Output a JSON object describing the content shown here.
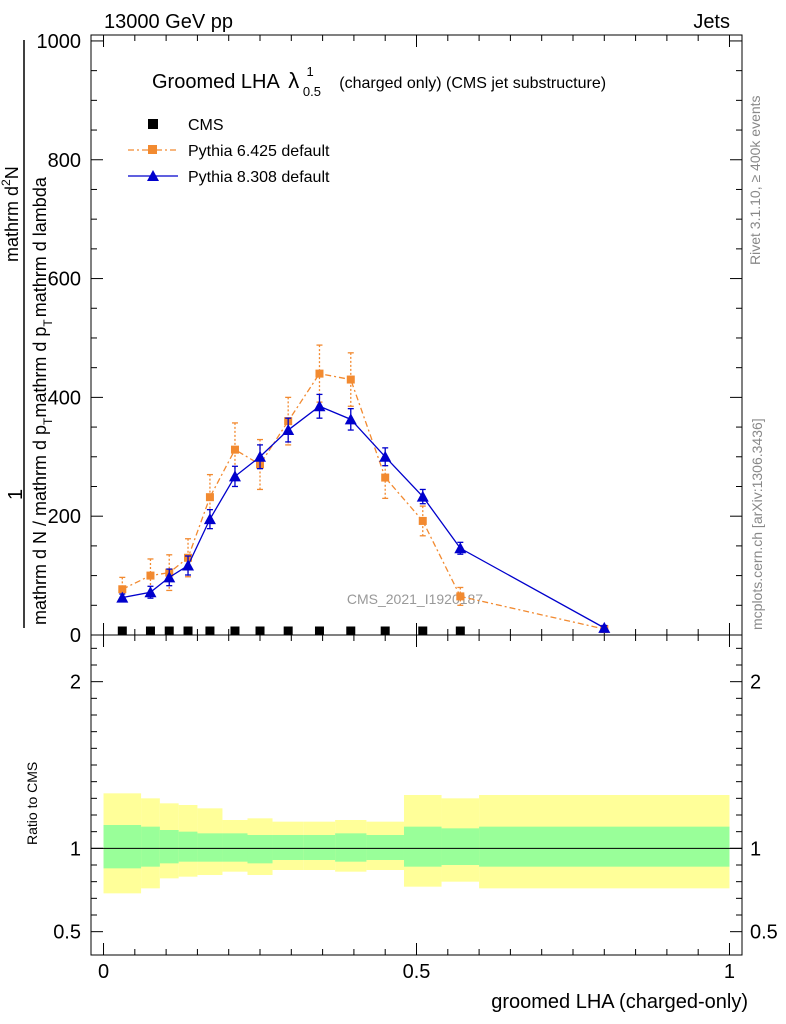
{
  "header": {
    "energy": "13000 GeV pp",
    "process": "Jets"
  },
  "side_labels": {
    "rivet": "Rivet 3.1.10, ≥ 400k events",
    "mcplots": "mcplots.cern.ch [arXiv:1306.3436]"
  },
  "chart_data": {
    "type": "line",
    "title_main": "Groomed LHA",
    "title_symbol": "λ",
    "title_sup": "1",
    "title_sub": "0.5",
    "title_suffix": "(charged only) (CMS jet substructure)",
    "watermark": "CMS_2021_I1920187",
    "ylabel_parts": {
      "one": "1",
      "den1": "mathrm d N / mathrm d p",
      "den1_sub": "T",
      "den2": "mathrm d p",
      "den2_sub": "T",
      "den2_tail": "mathrm d lambda",
      "num": "mathrm d",
      "num_sup": "2",
      "num_tail": "N"
    },
    "xlabel": "groomed LHA (charged-only)",
    "xlim": [
      -0.02,
      1.02
    ],
    "ylim": [
      0,
      1010
    ],
    "xticks": [
      0,
      0.5,
      1
    ],
    "xtick_labels": [
      "0",
      "0.5",
      "1"
    ],
    "yticks": [
      0,
      200,
      400,
      600,
      800,
      1000
    ],
    "ytick_labels": [
      "0",
      "200",
      "400",
      "600",
      "800",
      "1000"
    ],
    "series": [
      {
        "name": "CMS",
        "color": "#000000",
        "marker": "square",
        "x": [
          0.03,
          0.075,
          0.105,
          0.135,
          0.17,
          0.21,
          0.25,
          0.295,
          0.345,
          0.395,
          0.45,
          0.51,
          0.57
        ],
        "y": [
          0,
          0,
          0,
          0,
          0,
          0,
          0,
          0,
          0,
          0,
          0,
          0,
          0
        ]
      },
      {
        "name": "Pythia 6.425 default",
        "color": "#f28a30",
        "marker": "square",
        "linestyle": "dashdot",
        "x": [
          0.03,
          0.075,
          0.105,
          0.135,
          0.17,
          0.21,
          0.25,
          0.295,
          0.345,
          0.395,
          0.45,
          0.51,
          0.57,
          0.8
        ],
        "y": [
          77,
          100,
          105,
          130,
          232,
          312,
          287,
          360,
          440,
          430,
          265,
          192,
          65,
          10
        ],
        "err": [
          20,
          28,
          30,
          32,
          38,
          45,
          42,
          40,
          48,
          45,
          35,
          25,
          15,
          5
        ]
      },
      {
        "name": "Pythia 8.308 default",
        "color": "#0000cc",
        "marker": "triangle",
        "linestyle": "solid",
        "x": [
          0.03,
          0.075,
          0.105,
          0.135,
          0.17,
          0.21,
          0.25,
          0.295,
          0.345,
          0.395,
          0.45,
          0.51,
          0.57,
          0.8
        ],
        "y": [
          63,
          72,
          97,
          117,
          195,
          267,
          300,
          345,
          385,
          363,
          300,
          233,
          146,
          12
        ],
        "err": [
          6,
          10,
          14,
          16,
          16,
          17,
          20,
          20,
          20,
          18,
          15,
          12,
          10,
          4
        ]
      }
    ],
    "ratio": {
      "ylabel": "Ratio to CMS",
      "ylim": [
        0.36,
        2.28
      ],
      "yticks": [
        0.5,
        1,
        2
      ],
      "ytick_labels": [
        "0.5",
        "1",
        "2"
      ],
      "reference_line": 1,
      "green_color": "#99ff99",
      "yellow_color": "#ffff99",
      "bins": [
        {
          "x0": 0.0,
          "x1": 0.06,
          "y1lo": 0.88,
          "y1hi": 1.14,
          "y2lo": 0.73,
          "y2hi": 1.33
        },
        {
          "x0": 0.06,
          "x1": 0.09,
          "y1lo": 0.89,
          "y1hi": 1.13,
          "y2lo": 0.76,
          "y2hi": 1.3
        },
        {
          "x0": 0.09,
          "x1": 0.12,
          "y1lo": 0.91,
          "y1hi": 1.11,
          "y2lo": 0.82,
          "y2hi": 1.27
        },
        {
          "x0": 0.12,
          "x1": 0.15,
          "y1lo": 0.92,
          "y1hi": 1.1,
          "y2lo": 0.83,
          "y2hi": 1.26
        },
        {
          "x0": 0.15,
          "x1": 0.19,
          "y1lo": 0.92,
          "y1hi": 1.09,
          "y2lo": 0.84,
          "y2hi": 1.24
        },
        {
          "x0": 0.19,
          "x1": 0.23,
          "y1lo": 0.92,
          "y1hi": 1.09,
          "y2lo": 0.86,
          "y2hi": 1.17
        },
        {
          "x0": 0.23,
          "x1": 0.27,
          "y1lo": 0.91,
          "y1hi": 1.08,
          "y2lo": 0.84,
          "y2hi": 1.18
        },
        {
          "x0": 0.27,
          "x1": 0.32,
          "y1lo": 0.93,
          "y1hi": 1.08,
          "y2lo": 0.87,
          "y2hi": 1.16
        },
        {
          "x0": 0.32,
          "x1": 0.37,
          "y1lo": 0.93,
          "y1hi": 1.08,
          "y2lo": 0.87,
          "y2hi": 1.16
        },
        {
          "x0": 0.37,
          "x1": 0.42,
          "y1lo": 0.92,
          "y1hi": 1.09,
          "y2lo": 0.86,
          "y2hi": 1.17
        },
        {
          "x0": 0.42,
          "x1": 0.48,
          "y1lo": 0.93,
          "y1hi": 1.08,
          "y2lo": 0.87,
          "y2hi": 1.16
        },
        {
          "x0": 0.48,
          "x1": 0.54,
          "y1lo": 0.89,
          "y1hi": 1.13,
          "y2lo": 0.77,
          "y2hi": 1.32
        },
        {
          "x0": 0.54,
          "x1": 0.6,
          "y1lo": 0.9,
          "y1hi": 1.12,
          "y2lo": 0.8,
          "y2hi": 1.3
        },
        {
          "x0": 0.6,
          "x1": 1.0,
          "y1lo": 0.89,
          "y1hi": 1.13,
          "y2lo": 0.76,
          "y2hi": 1.32
        }
      ]
    }
  }
}
